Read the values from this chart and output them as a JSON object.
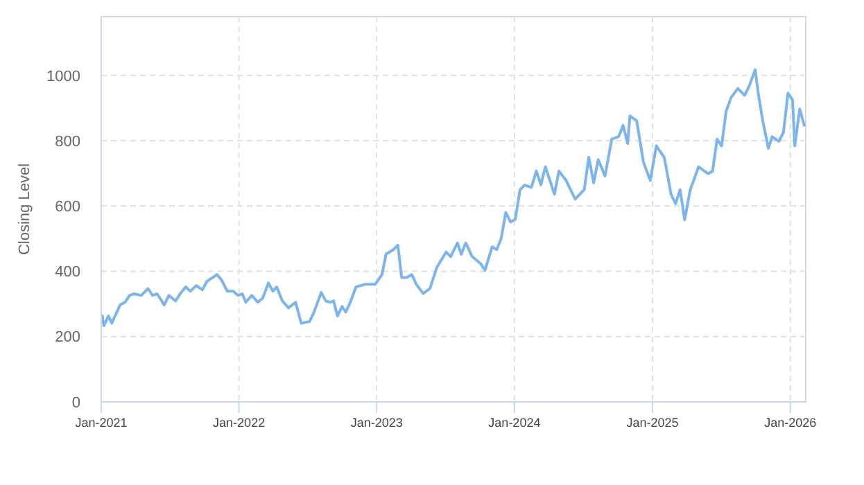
{
  "chart_data": {
    "type": "line",
    "ylabel": "Closing Level",
    "grid": true,
    "line_style": "solid",
    "marker": "none",
    "xlim": [
      "2021-01-01",
      "2026-02-11"
    ],
    "ylim": [
      0,
      1180
    ],
    "xticks": [
      {
        "value": "2021-01-01",
        "label": "Jan-2021"
      },
      {
        "value": "2022-01-01",
        "label": "Jan-2022"
      },
      {
        "value": "2023-01-01",
        "label": "Jan-2023"
      },
      {
        "value": "2024-01-01",
        "label": "Jan-2024"
      },
      {
        "value": "2025-01-01",
        "label": "Jan-2025"
      },
      {
        "value": "2026-01-01",
        "label": "Jan-2026"
      }
    ],
    "yticks": [
      0,
      200,
      400,
      600,
      800,
      1000
    ],
    "x": [
      "2021-01-04",
      "2021-01-08",
      "2021-01-20",
      "2021-01-29",
      "2021-02-20",
      "2021-03-05",
      "2021-03-17",
      "2021-03-29",
      "2021-04-17",
      "2021-05-05",
      "2021-05-17",
      "2021-05-29",
      "2021-06-17",
      "2021-06-29",
      "2021-07-17",
      "2021-07-29",
      "2021-08-13",
      "2021-08-25",
      "2021-09-10",
      "2021-09-26",
      "2021-10-08",
      "2021-11-04",
      "2021-11-16",
      "2021-12-01",
      "2021-12-17",
      "2021-12-29",
      "2022-01-10",
      "2022-01-19",
      "2022-02-04",
      "2022-02-20",
      "2022-03-05",
      "2022-03-20",
      "2022-04-01",
      "2022-04-11",
      "2022-04-26",
      "2022-05-12",
      "2022-05-31",
      "2022-06-15",
      "2022-07-07",
      "2022-07-19",
      "2022-08-07",
      "2022-08-19",
      "2022-08-31",
      "2022-09-09",
      "2022-09-19",
      "2022-10-01",
      "2022-10-11",
      "2022-10-23",
      "2022-11-07",
      "2022-12-01",
      "2022-12-28",
      "2023-01-15",
      "2023-01-26",
      "2023-02-14",
      "2023-02-26",
      "2023-03-08",
      "2023-03-22",
      "2023-04-04",
      "2023-04-16",
      "2023-05-04",
      "2023-05-22",
      "2023-06-09",
      "2023-07-04",
      "2023-07-16",
      "2023-08-03",
      "2023-08-13",
      "2023-08-25",
      "2023-09-11",
      "2023-10-03",
      "2023-10-15",
      "2023-11-03",
      "2023-11-15",
      "2023-11-27",
      "2023-12-09",
      "2023-12-22",
      "2024-01-03",
      "2024-01-16",
      "2024-01-28",
      "2024-02-15",
      "2024-02-28",
      "2024-03-11",
      "2024-03-23",
      "2024-04-16",
      "2024-04-28",
      "2024-05-17",
      "2024-06-10",
      "2024-07-04",
      "2024-07-16",
      "2024-07-29",
      "2024-08-10",
      "2024-08-28",
      "2024-09-15",
      "2024-10-03",
      "2024-10-15",
      "2024-10-27",
      "2024-11-02",
      "2024-11-20",
      "2024-12-08",
      "2024-12-26",
      "2025-01-11",
      "2025-02-01",
      "2025-02-19",
      "2025-03-03",
      "2025-03-15",
      "2025-03-27",
      "2025-04-11",
      "2025-05-03",
      "2025-05-28",
      "2025-06-09",
      "2025-06-21",
      "2025-07-03",
      "2025-07-15",
      "2025-07-28",
      "2025-08-15",
      "2025-09-02",
      "2025-09-14",
      "2025-09-30",
      "2025-10-08",
      "2025-10-20",
      "2025-11-04",
      "2025-11-14",
      "2025-12-02",
      "2025-12-14",
      "2025-12-26",
      "2026-01-07",
      "2026-01-13",
      "2026-01-26",
      "2026-02-07"
    ],
    "series": [
      {
        "color": "#7cb5ec",
        "values": [
          263,
          233,
          263,
          241,
          297,
          305,
          326,
          331,
          326,
          347,
          326,
          331,
          297,
          326,
          309,
          331,
          352,
          339,
          356,
          343,
          369,
          390,
          373,
          339,
          339,
          326,
          331,
          305,
          326,
          305,
          318,
          364,
          339,
          352,
          309,
          288,
          305,
          241,
          246,
          275,
          335,
          309,
          305,
          309,
          263,
          292,
          275,
          305,
          352,
          360,
          360,
          390,
          453,
          466,
          480,
          381,
          381,
          390,
          360,
          332,
          347,
          411,
          459,
          445,
          487,
          452,
          487,
          445,
          424,
          403,
          475,
          466,
          501,
          580,
          551,
          559,
          650,
          664,
          657,
          707,
          665,
          720,
          636,
          707,
          678,
          621,
          650,
          749,
          671,
          742,
          692,
          805,
          812,
          847,
          791,
          876,
          861,
          734,
          678,
          784,
          749,
          636,
          607,
          650,
          558,
          650,
          720,
          699,
          706,
          805,
          784,
          890,
          932,
          960,
          939,
          967,
          1017,
          946,
          861,
          777,
          812,
          798,
          826,
          946,
          925,
          784,
          897,
          847
        ]
      }
    ]
  }
}
